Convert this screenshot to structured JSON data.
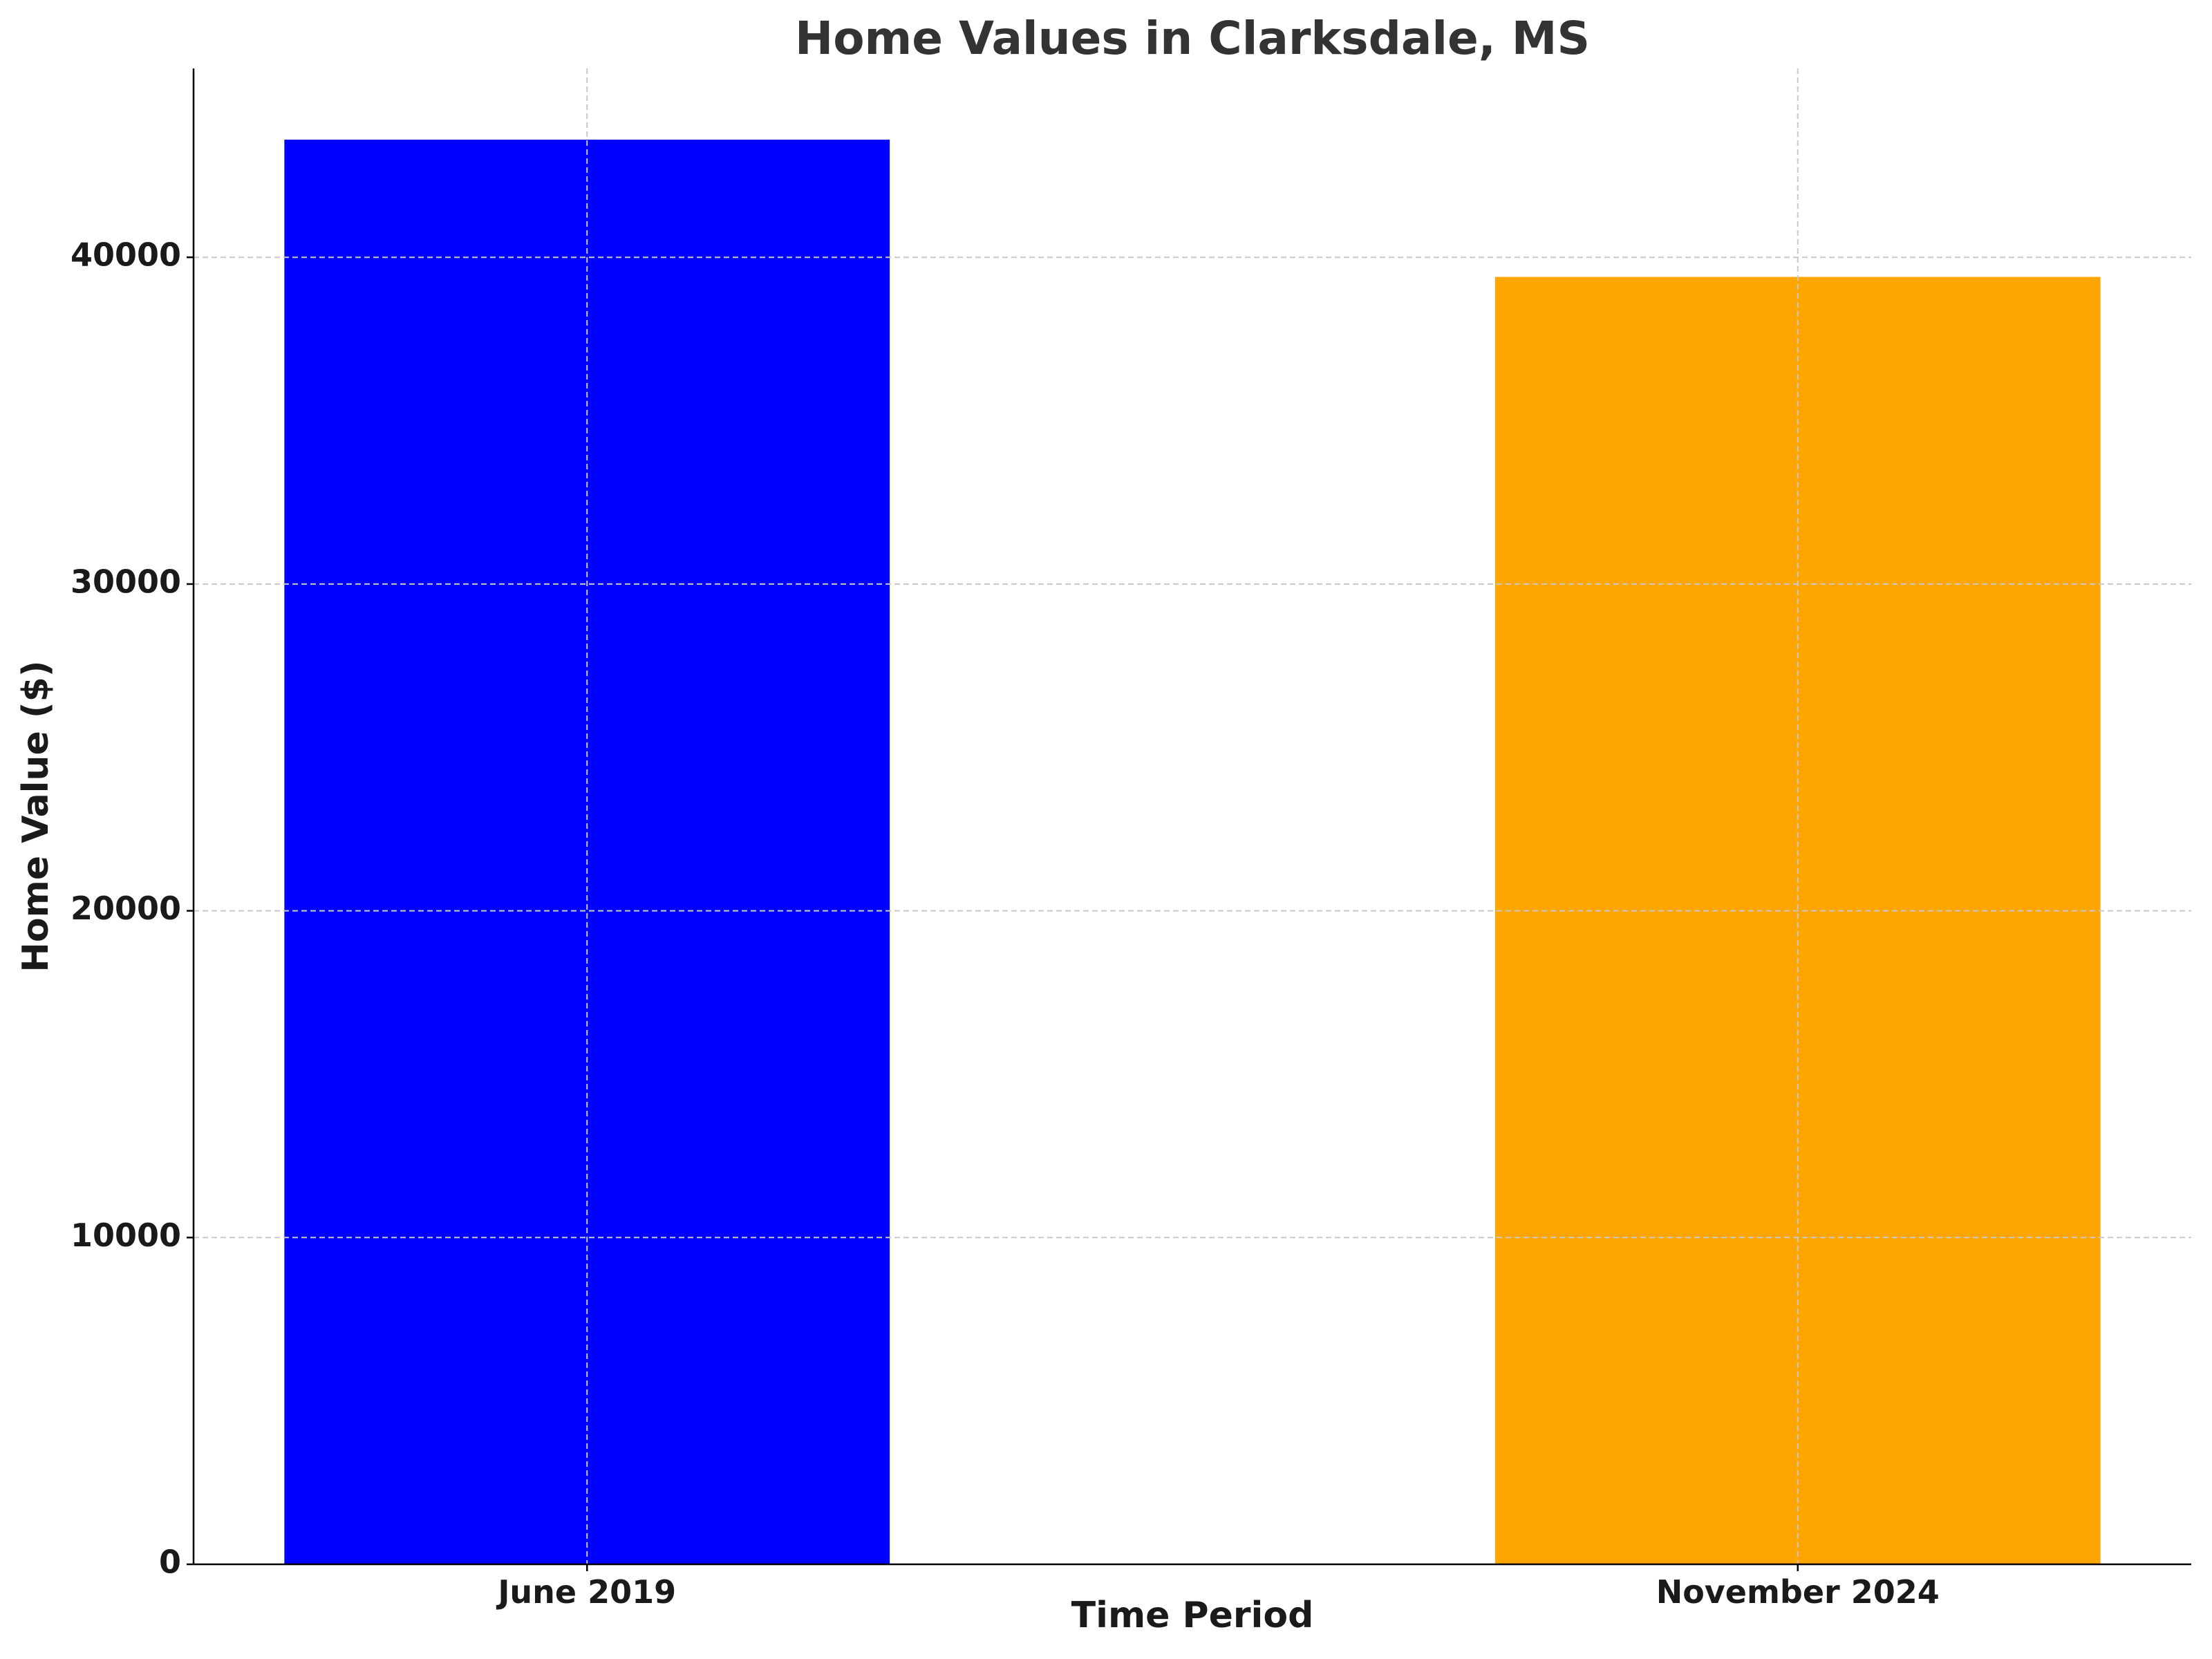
{
  "chart_data": {
    "type": "bar",
    "title": "Home Values in Clarksdale, MS",
    "x_label": "Time Period",
    "y_label": "Home Value ($)",
    "categories": [
      "June 2019",
      "November 2024"
    ],
    "values": [
      43600,
      39400
    ],
    "colors": [
      "#0000ff",
      "#ffa500"
    ],
    "ylim": [
      0,
      45780
    ],
    "yticks": [
      0,
      10000,
      20000,
      30000,
      40000
    ],
    "grid": true
  }
}
